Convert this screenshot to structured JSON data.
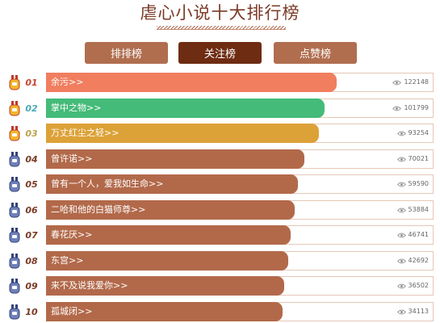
{
  "page_title": "虐心小说十大排行榜",
  "tabs": [
    {
      "label": "排排榜",
      "active": false
    },
    {
      "label": "关注榜",
      "active": true
    },
    {
      "label": "点赞榜",
      "active": false
    }
  ],
  "colors": {
    "gold_bar": "#f07e5f",
    "silver_bar": "#44bb78",
    "bronze_bar": "#dca238",
    "default_bar": "#b2694a",
    "rank_gold": "#c8442e",
    "rank_silver": "#4aa9b6",
    "rank_bronze": "#b9a24b",
    "rank_default": "#7a3a26"
  },
  "ranking": [
    {
      "rank": "01",
      "title": "余污>>",
      "views": "122148",
      "value": 122148,
      "medal": "gold-medal-icon"
    },
    {
      "rank": "02",
      "title": "掌中之物>>",
      "views": "101799",
      "value": 101799,
      "medal": "gold-medal-icon"
    },
    {
      "rank": "03",
      "title": "万丈红尘之轻>>",
      "views": "93254",
      "value": 93254,
      "medal": "gold-medal-icon"
    },
    {
      "rank": "04",
      "title": "曾许诺>>",
      "views": "70021",
      "value": 70021,
      "medal": "blue-medal-icon"
    },
    {
      "rank": "05",
      "title": "曾有一个人，爱我如生命>>",
      "views": "59590",
      "value": 59590,
      "medal": "blue-medal-icon"
    },
    {
      "rank": "06",
      "title": "二哈和他的白猫师尊>>",
      "views": "53884",
      "value": 53884,
      "medal": "blue-medal-icon"
    },
    {
      "rank": "07",
      "title": "春花厌>>",
      "views": "46741",
      "value": 46741,
      "medal": "blue-medal-icon"
    },
    {
      "rank": "08",
      "title": "东宫>>",
      "views": "42692",
      "value": 42692,
      "medal": "blue-medal-icon"
    },
    {
      "rank": "09",
      "title": "来不及说我爱你>>",
      "views": "36502",
      "value": 36502,
      "medal": "blue-medal-icon"
    },
    {
      "rank": "10",
      "title": "孤城闭>>",
      "views": "34113",
      "value": 34113,
      "medal": "blue-medal-icon"
    }
  ]
}
